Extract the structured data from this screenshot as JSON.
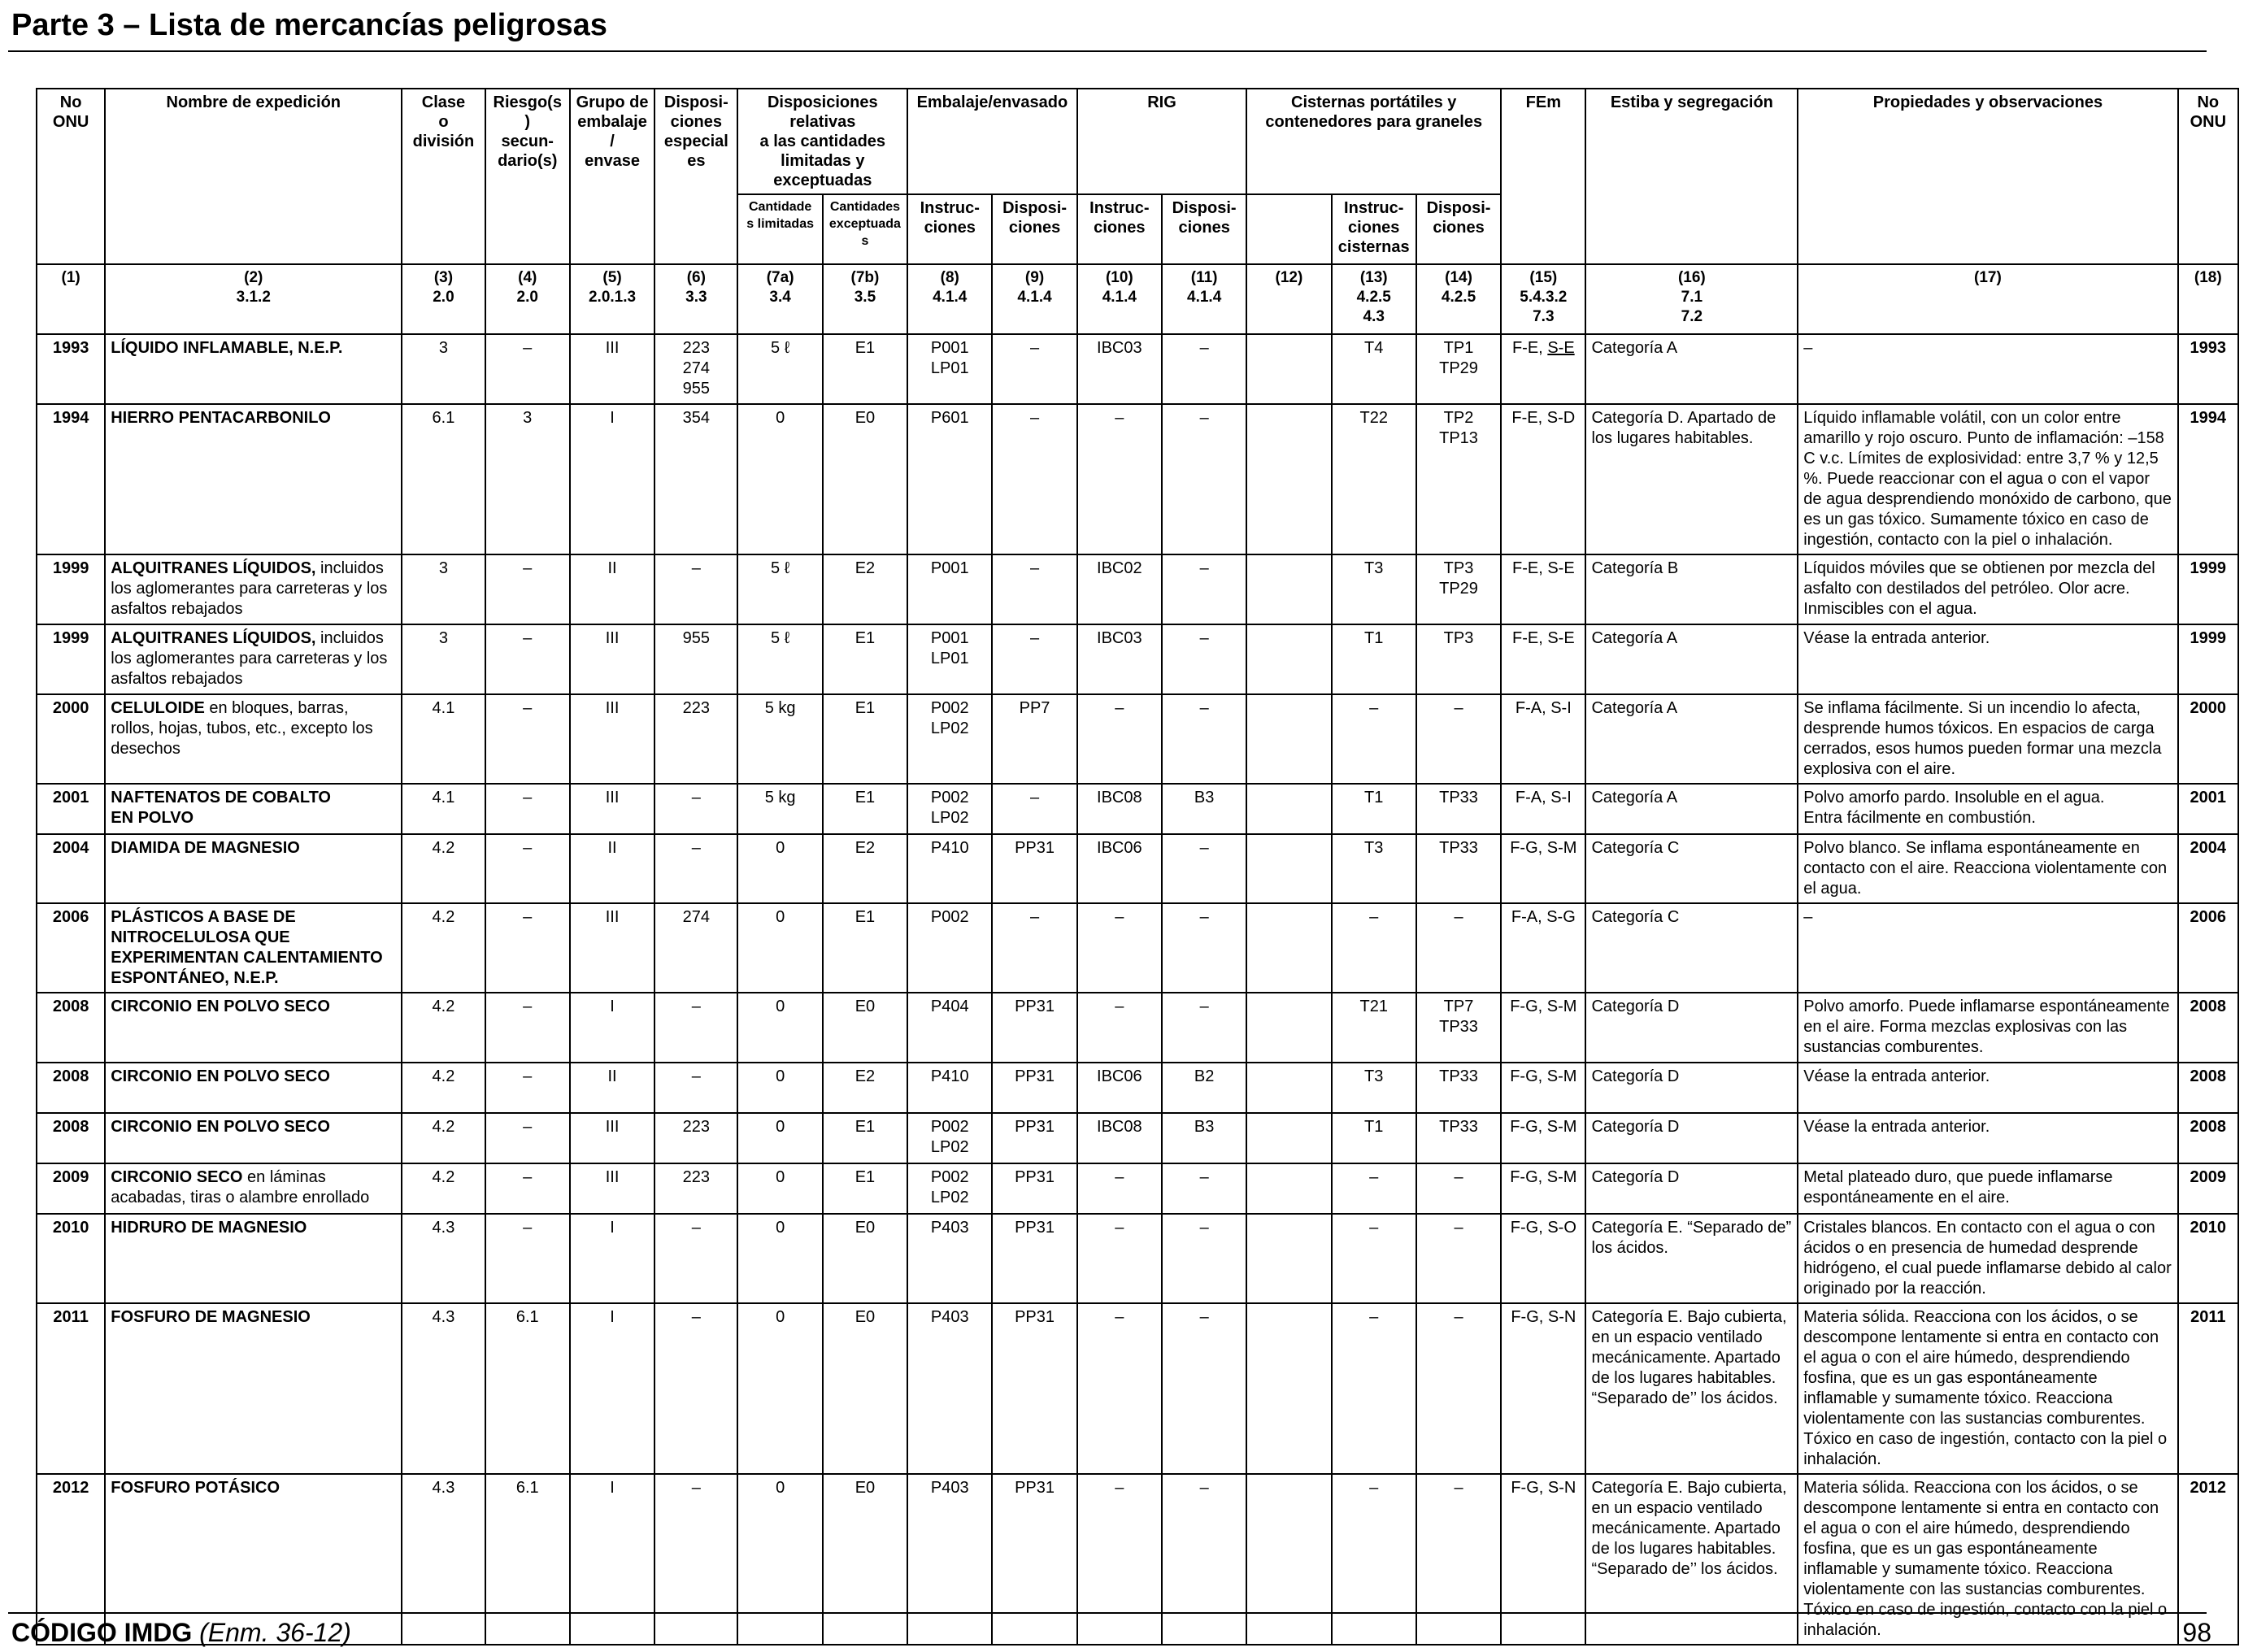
{
  "header": {
    "title": "Parte 3 – Lista de mercancías peligrosas"
  },
  "footer": {
    "code": "CÓDIGO IMDG",
    "edition": "(Enm. 36-12)",
    "page": "98"
  },
  "table": {
    "headers": {
      "un_no": "No\nONU",
      "name": "Nombre de expedición",
      "class": "Clase\no\ndivisión",
      "subrisk": "Riesgo(s)\nsecun-\ndario(s)",
      "packing_group": "Grupo de\nembalaje/\nenvase",
      "special_provisions": "Disposi-\nciones\nespeciales",
      "limited_excepted": "Disposiciones relativas\na las cantidades\nlimitadas y exceptuadas",
      "limited": "Cantidade\ns limitadas",
      "excepted": "Cantidades\nexceptuadas",
      "packing": "Embalaje/envasado",
      "packing_instr": "Instruc-\nciones",
      "packing_prov": "Disposi-\nciones",
      "ibc": "RIG",
      "ibc_instr": "Instruc-\nciones",
      "ibc_prov": "Disposi-\nciones",
      "tanks": "Cisternas portátiles y\ncontenedores para graneles",
      "tank_instr": "Instruc-\nciones\ncisternas",
      "tank_prov": "Disposi-\nciones",
      "ems": "FEm",
      "stowage": "Estiba y segregación",
      "properties": "Propiedades y observaciones",
      "un_no_right": "No\nONU"
    },
    "col_numbers": [
      "(1)",
      "(2)\n3.1.2",
      "(3)\n2.0",
      "(4)\n2.0",
      "(5)\n2.0.1.3",
      "(6)\n3.3",
      "(7a)\n3.4",
      "(7b)\n3.5",
      "(8)\n4.1.4",
      "(9)\n4.1.4",
      "(10)\n4.1.4",
      "(11)\n4.1.4",
      "(12)",
      "(13)\n4.2.5\n4.3",
      "(14)\n4.2.5",
      "(15)\n5.4.3.2\n7.3",
      "(16)\n7.1\n7.2",
      "(17)",
      "(18)"
    ],
    "rows": [
      {
        "un": "1993",
        "name": "LÍQUIDO INFLAMABLE, N.E.P.",
        "name_extra": "",
        "cls": "3",
        "sub": "–",
        "pg": "III",
        "sp": "223\n274\n955",
        "lq": "5 ℓ",
        "eq": "E1",
        "pi": "P001\nLP01",
        "pp": "–",
        "ibc": "IBC03",
        "ibcp": "–",
        "c12": "",
        "ti": "T4",
        "tp": "TP1\nTP29",
        "ems_a": "F-E, ",
        "ems_b": "S-E",
        "stow": "Categoría A",
        "props": "–",
        "un_r": "1993"
      },
      {
        "un": "1994",
        "name": "HIERRO PENTACARBONILO",
        "name_extra": "",
        "cls": "6.1",
        "sub": "3",
        "pg": "I",
        "sp": "354",
        "lq": "0",
        "eq": "E0",
        "pi": "P601",
        "pp": "–",
        "ibc": "–",
        "ibcp": "–",
        "c12": "",
        "ti": "T22",
        "tp": "TP2\nTP13",
        "ems_a": "F-E, S-D",
        "ems_b": "",
        "stow": "Categoría D. Apartado de los lugares habitables.",
        "props": "Líquido inflamable volátil, con un color entre amarillo y rojo oscuro. Punto de inflamación: –158 C v.c. Límites de explosividad: entre 3,7 % y 12,5 %. Puede reaccionar con el agua o con el vapor de agua desprendiendo monóxido de carbono, que es un gas tóxico. Sumamente tóxico en caso de ingestión, contacto con la piel o inhalación.",
        "un_r": "1994"
      },
      {
        "un": "1999",
        "name": "ALQUITRANES LÍQUIDOS,",
        "name_extra": " incluidos los aglomerantes para carreteras y los asfaltos rebajados",
        "cls": "3",
        "sub": "–",
        "pg": "II",
        "sp": "–",
        "lq": "5 ℓ",
        "eq": "E2",
        "pi": "P001",
        "pp": "–",
        "ibc": "IBC02",
        "ibcp": "–",
        "c12": "",
        "ti": "T3",
        "tp": "TP3\nTP29",
        "ems_a": "F-E, S-E",
        "ems_b": "",
        "stow": "Categoría B",
        "props": "Líquidos móviles que se obtienen por mezcla del asfalto con destilados del petróleo. Olor acre. Inmiscibles con el agua.",
        "un_r": "1999"
      },
      {
        "un": "1999",
        "name": "ALQUITRANES LÍQUIDOS,",
        "name_extra": " incluidos los aglomerantes para carreteras y los asfaltos rebajados",
        "cls": "3",
        "sub": "–",
        "pg": "III",
        "sp": "955",
        "lq": "5 ℓ",
        "eq": "E1",
        "pi": "P001\nLP01",
        "pp": "–",
        "ibc": "IBC03",
        "ibcp": "–",
        "c12": "",
        "ti": "T1",
        "tp": "TP3",
        "ems_a": "F-E, S-E",
        "ems_b": "",
        "stow": "Categoría A",
        "props": "Véase la entrada anterior.",
        "un_r": "1999"
      },
      {
        "un": "2000",
        "name": "CELULOIDE",
        "name_extra": " en bloques, barras, rollos, hojas, tubos, etc., excepto los desechos",
        "cls": "4.1",
        "sub": "–",
        "pg": "III",
        "sp": "223",
        "lq": "5 kg",
        "eq": "E1",
        "pi": "P002\nLP02",
        "pp": "PP7",
        "ibc": "–",
        "ibcp": "–",
        "c12": "",
        "ti": "–",
        "tp": "–",
        "ems_a": "F-A, S-I",
        "ems_b": "",
        "stow": "Categoría A",
        "props": "Se inflama fácilmente. Si un incendio lo afecta, desprende humos tóxicos. En espacios de carga cerrados, esos humos pueden formar una mezcla explosiva con el aire.",
        "un_r": "2000"
      },
      {
        "un": "2001",
        "name": "NAFTENATOS DE COBALTO\nEN POLVO",
        "name_extra": "",
        "cls": "4.1",
        "sub": "–",
        "pg": "III",
        "sp": "–",
        "lq": "5 kg",
        "eq": "E1",
        "pi": "P002\nLP02",
        "pp": "–",
        "ibc": "IBC08",
        "ibcp": "B3",
        "c12": "",
        "ti": "T1",
        "tp": "TP33",
        "ems_a": "F-A, S-I",
        "ems_b": "",
        "stow": "Categoría A",
        "props": "Polvo amorfo pardo. Insoluble en el agua.\nEntra fácilmente en combustión.",
        "un_r": "2001"
      },
      {
        "un": "2004",
        "name": "DIAMIDA DE MAGNESIO",
        "name_extra": "",
        "cls": "4.2",
        "sub": "–",
        "pg": "II",
        "sp": "–",
        "lq": "0",
        "eq": "E2",
        "pi": "P410",
        "pp": "PP31",
        "ibc": "IBC06",
        "ibcp": "–",
        "c12": "",
        "ti": "T3",
        "tp": "TP33",
        "ems_a": "F-G, S-M",
        "ems_b": "",
        "stow": "Categoría C",
        "props": "Polvo blanco. Se inflama espontáneamente en contacto con el aire. Reacciona violentamente con el agua.",
        "un_r": "2004"
      },
      {
        "un": "2006",
        "name": "PLÁSTICOS A BASE DE NITROCELULOSA QUE EXPERIMENTAN CALENTAMIENTO ESPONTÁNEO, N.E.P.",
        "name_extra": "",
        "cls": "4.2",
        "sub": "–",
        "pg": "III",
        "sp": "274",
        "lq": "0",
        "eq": "E1",
        "pi": "P002",
        "pp": "–",
        "ibc": "–",
        "ibcp": "–",
        "c12": "",
        "ti": "–",
        "tp": "–",
        "ems_a": "F-A, S-G",
        "ems_b": "",
        "stow": "Categoría C",
        "props": "–",
        "un_r": "2006"
      },
      {
        "un": "2008",
        "name": "CIRCONIO EN POLVO SECO",
        "name_extra": "",
        "cls": "4.2",
        "sub": "–",
        "pg": "I",
        "sp": "–",
        "lq": "0",
        "eq": "E0",
        "pi": "P404",
        "pp": "PP31",
        "ibc": "–",
        "ibcp": "–",
        "c12": "",
        "ti": "T21",
        "tp": "TP7\nTP33",
        "ems_a": "F-G, S-M",
        "ems_b": "",
        "stow": "Categoría D",
        "props": "Polvo amorfo. Puede inflamarse espontáneamente en el aire. Forma mezclas explosivas con las sustancias comburentes.",
        "un_r": "2008"
      },
      {
        "un": "2008",
        "name": "CIRCONIO EN POLVO SECO",
        "name_extra": "",
        "cls": "4.2",
        "sub": "–",
        "pg": "II",
        "sp": "–",
        "lq": "0",
        "eq": "E2",
        "pi": "P410",
        "pp": "PP31",
        "ibc": "IBC06",
        "ibcp": "B2",
        "c12": "",
        "ti": "T3",
        "tp": "TP33",
        "ems_a": "F-G, S-M",
        "ems_b": "",
        "stow": "Categoría D",
        "props": "Véase la entrada anterior.",
        "un_r": "2008"
      },
      {
        "un": "2008",
        "name": "CIRCONIO EN POLVO SECO",
        "name_extra": "",
        "cls": "4.2",
        "sub": "–",
        "pg": "III",
        "sp": "223",
        "lq": "0",
        "eq": "E1",
        "pi": "P002\nLP02",
        "pp": "PP31",
        "ibc": "IBC08",
        "ibcp": "B3",
        "c12": "",
        "ti": "T1",
        "tp": "TP33",
        "ems_a": "F-G, S-M",
        "ems_b": "",
        "stow": "Categoría D",
        "props": "Véase la entrada anterior.",
        "un_r": "2008"
      },
      {
        "un": "2009",
        "name": "CIRCONIO SECO",
        "name_extra": " en láminas acabadas, tiras o alambre enrollado",
        "cls": "4.2",
        "sub": "–",
        "pg": "III",
        "sp": "223",
        "lq": "0",
        "eq": "E1",
        "pi": "P002\nLP02",
        "pp": "PP31",
        "ibc": "–",
        "ibcp": "–",
        "c12": "",
        "ti": "–",
        "tp": "–",
        "ems_a": "F-G, S-M",
        "ems_b": "",
        "stow": "Categoría D",
        "props": "Metal plateado duro, que puede inflamarse espontáneamente en el aire.",
        "un_r": "2009"
      },
      {
        "un": "2010",
        "name": "HIDRURO DE MAGNESIO",
        "name_extra": "",
        "cls": "4.3",
        "sub": "–",
        "pg": "I",
        "sp": "–",
        "lq": "0",
        "eq": "E0",
        "pi": "P403",
        "pp": "PP31",
        "ibc": "–",
        "ibcp": "–",
        "c12": "",
        "ti": "–",
        "tp": "–",
        "ems_a": "F-G, S-O",
        "ems_b": "",
        "stow": "Categoría E. “Separado de” los ácidos.",
        "props": "Cristales blancos. En contacto con el agua o con ácidos o en presencia de humedad desprende hidrógeno, el cual puede inflamarse debido al calor originado por la reacción.",
        "un_r": "2010"
      },
      {
        "un": "2011",
        "name": "FOSFURO DE MAGNESIO",
        "name_extra": "",
        "cls": "4.3",
        "sub": "6.1",
        "pg": "I",
        "sp": "–",
        "lq": "0",
        "eq": "E0",
        "pi": "P403",
        "pp": "PP31",
        "ibc": "–",
        "ibcp": "–",
        "c12": "",
        "ti": "–",
        "tp": "–",
        "ems_a": "F-G, S-N",
        "ems_b": "",
        "stow": "Categoría E. Bajo cubierta, en un espacio ventilado mecánicamente. Apartado de los lugares habitables. “Separado de’’ los ácidos.",
        "props": "Materia sólida. Reacciona con los ácidos, o se descompone lentamente si entra en contacto con el agua o con el aire húmedo, desprendiendo fosfina, que es un gas espontáneamente inflamable y sumamente tóxico. Reacciona violentamente con las sustancias comburentes. Tóxico en caso de ingestión, contacto con la piel o inhalación.",
        "un_r": "2011"
      },
      {
        "un": "2012",
        "name": "FOSFURO POTÁSICO",
        "name_extra": "",
        "cls": "4.3",
        "sub": "6.1",
        "pg": "I",
        "sp": "–",
        "lq": "0",
        "eq": "E0",
        "pi": "P403",
        "pp": "PP31",
        "ibc": "–",
        "ibcp": "–",
        "c12": "",
        "ti": "–",
        "tp": "–",
        "ems_a": "F-G, S-N",
        "ems_b": "",
        "stow": "Categoría E. Bajo cubierta, en un espacio ventilado mecánicamente. Apartado de los lugares habitables. “Separado de’’ los ácidos.",
        "props": "Materia sólida. Reacciona con los ácidos, o se descompone lentamente si entra en contacto con el agua o con el aire húmedo, desprendiendo fosfina, que es un gas espontáneamente inflamable y sumamente tóxico. Reacciona violentamente con las sustancias comburentes. Tóxico en caso de ingestión, contacto con la piel o inhalación.",
        "un_r": "2012"
      }
    ]
  }
}
